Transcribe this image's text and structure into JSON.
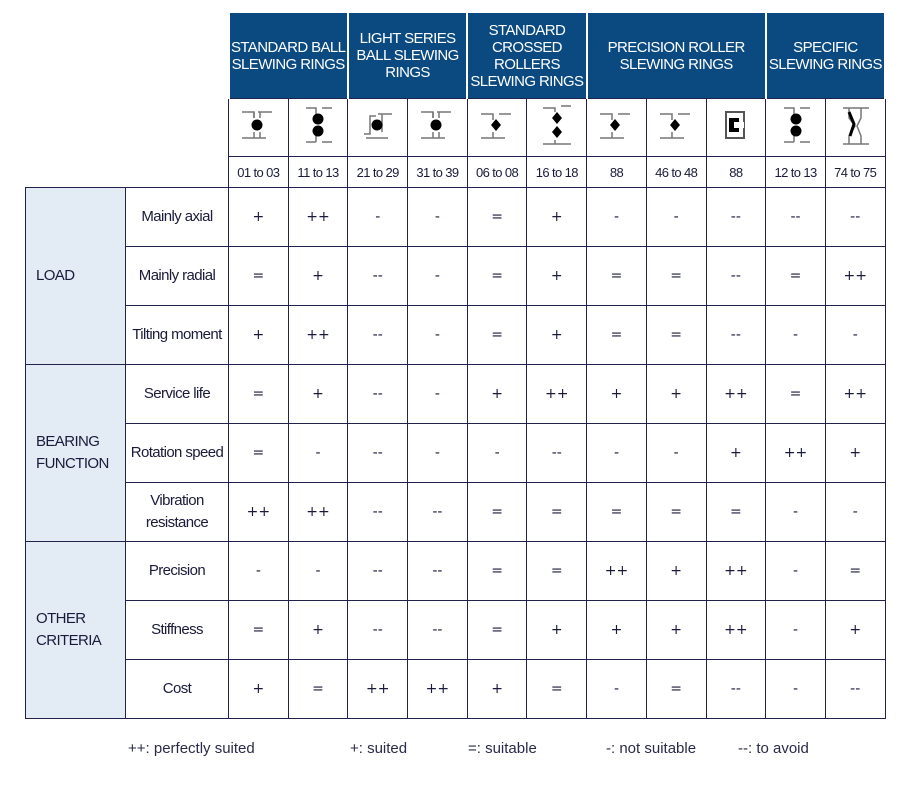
{
  "groups": [
    {
      "label": "STANDARD BALL SLEWING RINGS",
      "span": 2
    },
    {
      "label": "LIGHT SERIES BALL SLEWING RINGS",
      "span": 2
    },
    {
      "label": "STANDARD CROSSED ROLLERS SLEWING RINGS",
      "span": 2
    },
    {
      "label": "PRECISION ROLLER SLEWING RINGS",
      "span": 3
    },
    {
      "label": "SPECIFIC SLEWING RINGS",
      "span": 2
    }
  ],
  "columns": [
    {
      "code": "01 to 03",
      "icon": "single-ball-icon"
    },
    {
      "code": "11 to 13",
      "icon": "double-ball-icon"
    },
    {
      "code": "21 to 29",
      "icon": "light-ball-icon"
    },
    {
      "code": "31 to 39",
      "icon": "single-ball-icon"
    },
    {
      "code": "06 to 08",
      "icon": "crossed-roller-icon"
    },
    {
      "code": "16 to 18",
      "icon": "double-roller-icon"
    },
    {
      "code": "88",
      "icon": "crossed-roller-icon"
    },
    {
      "code": "46 to 48",
      "icon": "crossed-roller-icon"
    },
    {
      "code": "88",
      "icon": "triple-roller-icon"
    },
    {
      "code": "12 to 13",
      "icon": "double-ball-icon"
    },
    {
      "code": "74 to 75",
      "icon": "wire-race-icon"
    }
  ],
  "categories": [
    {
      "label": "LOAD",
      "rows": [
        {
          "criterion": "Mainly axial",
          "values": [
            "+",
            "++",
            "-",
            "-",
            "=",
            "+",
            "-",
            "-",
            "--",
            "--",
            "--"
          ]
        },
        {
          "criterion": "Mainly radial",
          "values": [
            "=",
            "+",
            "--",
            "-",
            "=",
            "+",
            "=",
            "=",
            "--",
            "=",
            "++"
          ]
        },
        {
          "criterion": "Tilting moment",
          "values": [
            "+",
            "++",
            "--",
            "-",
            "=",
            "+",
            "=",
            "=",
            "--",
            "-",
            "-"
          ]
        }
      ]
    },
    {
      "label": "BEARING FUNCTION",
      "rows": [
        {
          "criterion": "Service life",
          "values": [
            "=",
            "+",
            "--",
            "-",
            "+",
            "++",
            "+",
            "+",
            "++",
            "=",
            "++"
          ]
        },
        {
          "criterion": "Rotation speed",
          "values": [
            "=",
            "-",
            "--",
            "-",
            "-",
            "--",
            "-",
            "-",
            "+",
            "++",
            "+"
          ]
        },
        {
          "criterion": "Vibration resistance",
          "values": [
            "++",
            "++",
            "--",
            "--",
            "=",
            "=",
            "=",
            "=",
            "=",
            "-",
            "-"
          ]
        }
      ]
    },
    {
      "label": "OTHER CRITERIA",
      "rows": [
        {
          "criterion": "Precision",
          "values": [
            "-",
            "-",
            "--",
            "--",
            "=",
            "=",
            "++",
            "+",
            "++",
            "-",
            "="
          ]
        },
        {
          "criterion": "Stiffness",
          "values": [
            "=",
            "+",
            "--",
            "--",
            "=",
            "+",
            "+",
            "+",
            "++",
            "-",
            "+"
          ]
        },
        {
          "criterion": "Cost",
          "values": [
            "+",
            "=",
            "++",
            "++",
            "+",
            "=",
            "-",
            "=",
            "--",
            "-",
            "--"
          ]
        }
      ]
    }
  ],
  "legend": [
    "++: perfectly suited",
    "+: suited",
    "=: suitable",
    "-: not suitable",
    "--: to avoid"
  ],
  "colors": {
    "header": "#0b4a80",
    "category_bg": "#e3ecf5",
    "border": "#22224a"
  }
}
